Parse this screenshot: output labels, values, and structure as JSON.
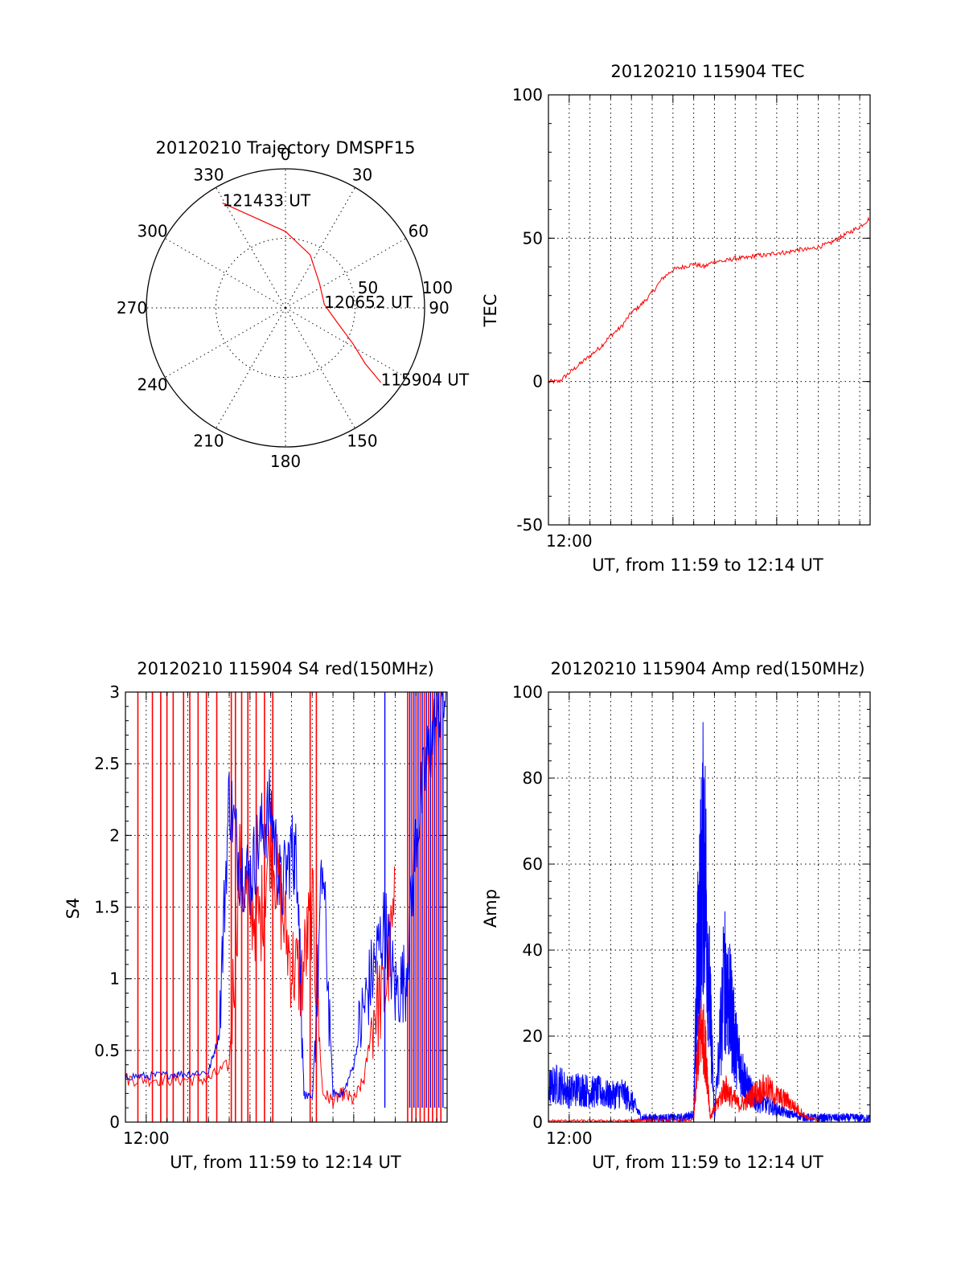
{
  "colors": {
    "red": "#ff0000",
    "blue": "#0000ff",
    "axis": "#000000",
    "background": "#ffffff"
  },
  "chart_data": [
    {
      "id": "trajectory",
      "type": "polar",
      "title": "20120210 Trajectory DMSPF15",
      "angle_labels": [
        "0",
        "30",
        "60",
        "90",
        "150",
        "180",
        "210",
        "240",
        "270",
        "300",
        "330"
      ],
      "radial_labels": [
        "50",
        "100"
      ],
      "radial_ticks": [
        50,
        100
      ],
      "rlim": [
        0,
        100
      ],
      "radial_label_angle_deg": 90,
      "angle_label_values": [
        0,
        30,
        60,
        90,
        150,
        180,
        210,
        240,
        270,
        300,
        330
      ],
      "track": {
        "color": "#ff0000",
        "points": [
          {
            "az": 329,
            "el_r": 88
          },
          {
            "az": 340,
            "el_r": 70
          },
          {
            "az": 0,
            "el_r": 55
          },
          {
            "az": 25,
            "el_r": 42
          },
          {
            "az": 55,
            "el_r": 30
          },
          {
            "az": 85,
            "el_r": 28
          },
          {
            "az": 105,
            "el_r": 38
          },
          {
            "az": 118,
            "el_r": 55
          },
          {
            "az": 125,
            "el_r": 70
          },
          {
            "az": 128,
            "el_r": 87
          }
        ]
      },
      "annotations": [
        {
          "text": "121433 UT",
          "az": 329,
          "el_r": 88
        },
        {
          "text": "120652 UT",
          "az": 85,
          "el_r": 28
        },
        {
          "text": "115904 UT",
          "az": 128,
          "el_r": 87
        }
      ]
    },
    {
      "id": "tec",
      "type": "line",
      "title": "20120210 115904 TEC",
      "ylabel": "TEC",
      "xlabel": "UT, from 11:59 to 12:14 UT",
      "xlim": [
        0,
        15.5
      ],
      "ylim": [
        -50,
        100
      ],
      "yticks": [
        -50,
        0,
        50,
        100
      ],
      "xtick_labels": [
        {
          "label": "12:00",
          "t": 1
        }
      ],
      "series": [
        {
          "color": "#ff0000",
          "x": [
            0,
            0.5,
            1,
            1.5,
            2,
            2.5,
            3,
            3.5,
            4,
            4.5,
            5,
            5.5,
            6,
            6.5,
            7,
            7.5,
            8,
            8.5,
            9,
            9.5,
            10,
            10.5,
            11,
            11.5,
            12,
            12.5,
            13,
            13.5,
            14,
            14.5,
            15,
            15.5
          ],
          "y": [
            0,
            0,
            3,
            6,
            9,
            12,
            16,
            19,
            24,
            27,
            31,
            36,
            39,
            40,
            41,
            40,
            42,
            42,
            43,
            43,
            44,
            44,
            45,
            45,
            46,
            46,
            47,
            48,
            50,
            52,
            54,
            57
          ]
        }
      ]
    },
    {
      "id": "s4",
      "type": "line",
      "title": "20120210 115904 S4 red(150MHz)",
      "ylabel": "S4",
      "xlabel": "UT, from 11:59 to 12:14 UT",
      "xlim": [
        0,
        15.5
      ],
      "ylim": [
        0,
        3
      ],
      "yticks": [
        0,
        0.5,
        1,
        1.5,
        2,
        2.5,
        3
      ],
      "ytick_labels": [
        "0",
        "0.5",
        "1",
        "1.5",
        "2",
        "2.5",
        "3"
      ],
      "xtick_labels": [
        {
          "label": "12:00",
          "t": 1
        }
      ],
      "series": [
        {
          "color": "#ff0000",
          "x": [
            0,
            1,
            2,
            3,
            4,
            5,
            5.5,
            6,
            6.5,
            7,
            7.5,
            8,
            8.5,
            9,
            9.5,
            10,
            10.5,
            11,
            11.5,
            12,
            12.5,
            13
          ],
          "y": [
            0.3,
            0.3,
            0.3,
            0.3,
            0.3,
            0.4,
            1.8,
            1.5,
            1.4,
            2.0,
            1.5,
            1.1,
            1.0,
            1.5,
            0.2,
            0.15,
            0.2,
            0.15,
            0.3,
            0.8,
            0.9,
            1.5
          ]
        },
        {
          "color": "#0000ff",
          "x": [
            0,
            1,
            2,
            3,
            4,
            4.5,
            5,
            5.5,
            6,
            6.5,
            7,
            7.5,
            8,
            8.3,
            8.6,
            9,
            9.5,
            10,
            10.5,
            11,
            11.5,
            12,
            12.5,
            13,
            13.5,
            14,
            14.5,
            15,
            15.5
          ],
          "y": [
            0.32,
            0.32,
            0.33,
            0.34,
            0.35,
            0.6,
            2.3,
            1.8,
            1.7,
            2.0,
            2.2,
            1.6,
            1.9,
            1.8,
            0.2,
            0.15,
            1.8,
            0.2,
            0.2,
            0.4,
            0.8,
            1.1,
            1.4,
            0.9,
            1.0,
            2.0,
            2.5,
            2.8,
            3.0
          ]
        }
      ],
      "spike_times_red": [
        0.6,
        1.3,
        1.7,
        2.0,
        2.3,
        2.8,
        3.1,
        3.5,
        3.9,
        4.4,
        5.1,
        5.3,
        5.6,
        5.9,
        6.3,
        6.7,
        7.1,
        8.9,
        9.2,
        13.6,
        13.8,
        14.0,
        14.2,
        14.4,
        14.6,
        14.8,
        15.0,
        15.2
      ],
      "spike_times_blue": [
        12.5,
        13.7,
        13.9,
        14.1,
        14.3,
        14.5,
        14.7,
        14.9,
        15.1,
        15.3
      ]
    },
    {
      "id": "amp",
      "type": "line",
      "title": "20120210 115904 Amp red(150MHz)",
      "ylabel": "Amp",
      "xlabel": "UT, from 11:59 to 12:14 UT",
      "xlim": [
        0,
        15.5
      ],
      "ylim": [
        0,
        100
      ],
      "yticks": [
        0,
        20,
        40,
        60,
        80,
        100
      ],
      "xtick_labels": [
        {
          "label": "12:00",
          "t": 1
        }
      ],
      "series": [
        {
          "color": "#ff0000",
          "x": [
            0,
            1,
            2,
            3,
            4,
            4.5,
            5,
            6,
            7,
            7.2,
            7.4,
            7.6,
            7.8,
            8.0,
            8.5,
            8.8,
            9.2,
            9.6,
            10,
            10.5,
            11,
            11.5,
            12,
            12.5,
            13
          ],
          "y": [
            0.3,
            0.3,
            0.3,
            0.3,
            0.3,
            0.5,
            0.5,
            0.5,
            0.5,
            16,
            22,
            15,
            1,
            3,
            8,
            6,
            4,
            5,
            7,
            8,
            6,
            5,
            3,
            1,
            0.5
          ]
        },
        {
          "color": "#0000ff",
          "x": [
            0,
            0.5,
            1,
            1.5,
            2,
            2.5,
            3,
            3.5,
            4,
            4.5,
            5,
            5.5,
            6,
            6.5,
            7,
            7.2,
            7.5,
            7.8,
            8.0,
            8.5,
            8.8,
            9.0,
            9.3,
            9.6,
            10,
            10.5,
            11,
            11.5,
            12,
            12.5,
            13,
            13.5,
            14,
            14.5,
            15,
            15.5
          ],
          "y": [
            8,
            9,
            7,
            8,
            7,
            7,
            6,
            7,
            5,
            1,
            1,
            1,
            1,
            1,
            2,
            40,
            65,
            25,
            1,
            35,
            25,
            18,
            12,
            8,
            5,
            4,
            3,
            2,
            1.5,
            1,
            1,
            1,
            1,
            1,
            1,
            0.8
          ]
        }
      ]
    }
  ]
}
